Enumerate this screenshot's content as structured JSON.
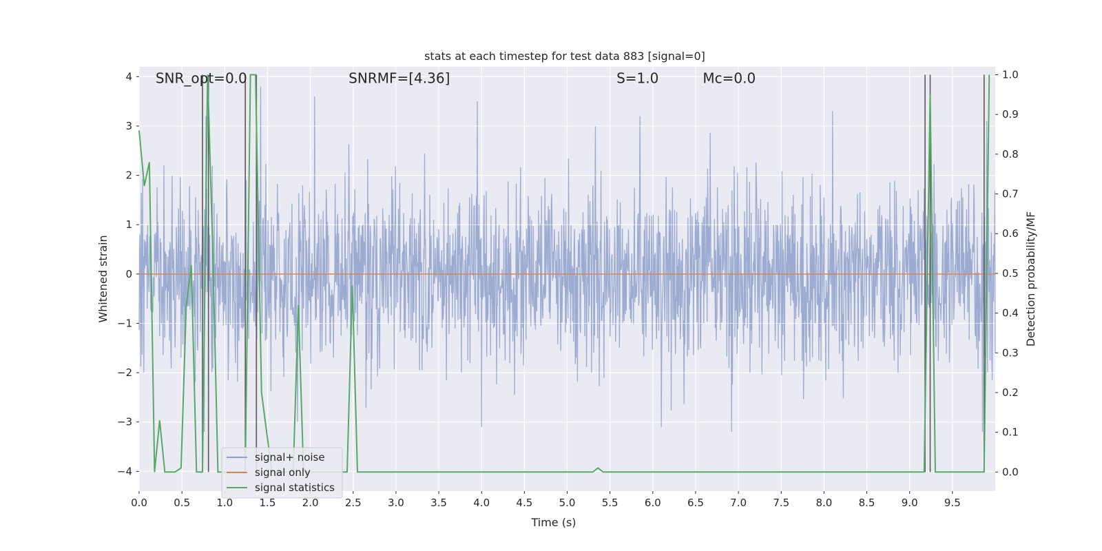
{
  "chart_data": {
    "type": "line",
    "title": "stats at each timestep for test data 883 [signal=0]",
    "xlabel": "Time (s)",
    "ylabel": "Whitened strain",
    "y2label": "Detection probability/MF",
    "xlim": [
      0.0,
      10.0
    ],
    "ylim": [
      -4.4,
      4.2
    ],
    "y2lim": [
      -0.048,
      1.02
    ],
    "x_ticks": [
      0.0,
      0.5,
      1.0,
      1.5,
      2.0,
      2.5,
      3.0,
      3.5,
      4.0,
      4.5,
      5.0,
      5.5,
      6.0,
      6.5,
      7.0,
      7.5,
      8.0,
      8.5,
      9.0,
      9.5
    ],
    "x_tick_labels": [
      "0.0",
      "0.5",
      "1.0",
      "1.5",
      "2.0",
      "2.5",
      "3.0",
      "3.5",
      "4.0",
      "4.5",
      "5.0",
      "5.5",
      "6.0",
      "6.5",
      "7.0",
      "7.5",
      "8.0",
      "8.5",
      "9.0",
      "9.5"
    ],
    "y_ticks": [
      4,
      3,
      2,
      1,
      0,
      -1,
      -2,
      -3,
      -4
    ],
    "y_tick_labels": [
      "4",
      "3",
      "2",
      "1",
      "0",
      "−1",
      "−2",
      "−3",
      "−4"
    ],
    "y2_ticks": [
      1.0,
      0.9,
      0.8,
      0.7,
      0.6,
      0.5,
      0.4,
      0.3,
      0.2,
      0.1,
      0.0
    ],
    "y2_tick_labels": [
      "1.0",
      "0.9",
      "0.8",
      "0.7",
      "0.6",
      "0.5",
      "0.4",
      "0.3",
      "0.2",
      "0.1",
      "0.0"
    ],
    "annotations": [
      {
        "text": "SNR_opt=0.0",
        "x": 0.2,
        "y": 4.0
      },
      {
        "text": "SNRMF=[4.36]",
        "x": 2.6,
        "y": 4.0
      },
      {
        "text": "S=1.0",
        "x": 5.6,
        "y": 4.0
      },
      {
        "text": "Mc=0.0",
        "x": 6.6,
        "y": 4.0
      }
    ],
    "legend": {
      "placement": "lower-left",
      "entries": [
        {
          "label": "signal+ noise",
          "color": "#8da0cb"
        },
        {
          "label": "signal only",
          "color": "#dd8452"
        },
        {
          "label": "signal statistics",
          "color": "#55a868"
        }
      ]
    },
    "series": [
      {
        "name": "signal+ noise",
        "axis": "left",
        "style": "dense-noise",
        "sampled_extremes": [
          {
            "x": 0.78,
            "y": 3.2
          },
          {
            "x": 0.76,
            "y": -3.2
          },
          {
            "x": 1.42,
            "y": 3.8
          },
          {
            "x": 1.85,
            "y": -3.0
          },
          {
            "x": 2.05,
            "y": 3.6
          },
          {
            "x": 3.95,
            "y": 3.5
          },
          {
            "x": 4.0,
            "y": -3.1
          },
          {
            "x": 5.33,
            "y": 3.0
          },
          {
            "x": 5.85,
            "y": 3.2
          },
          {
            "x": 6.1,
            "y": -3.1
          },
          {
            "x": 6.92,
            "y": -3.2
          },
          {
            "x": 8.1,
            "y": 3.3
          },
          {
            "x": 9.85,
            "y": -3.2
          },
          {
            "x": 9.9,
            "y": 3.1
          }
        ]
      },
      {
        "name": "signal only",
        "axis": "left",
        "x": [
          0.0,
          10.0
        ],
        "y": [
          0.0,
          0.0
        ]
      },
      {
        "name": "signal statistics",
        "axis": "right",
        "x": [
          0.0,
          0.06,
          0.12,
          0.18,
          0.24,
          0.3,
          0.42,
          0.49,
          0.55,
          0.61,
          0.67,
          0.74,
          0.8,
          0.86,
          0.92,
          1.24,
          1.3,
          1.36,
          1.43,
          1.55,
          1.8,
          1.86,
          1.92,
          2.43,
          2.49,
          2.55,
          5.3,
          5.36,
          5.42,
          9.17,
          9.24,
          9.3,
          9.87,
          9.93
        ],
        "y": [
          0.86,
          0.72,
          0.78,
          0.0,
          0.13,
          0.0,
          0.0,
          0.01,
          0.42,
          0.52,
          0.0,
          0.0,
          1.0,
          0.56,
          0.0,
          0.0,
          1.0,
          1.0,
          0.2,
          0.0,
          0.0,
          0.42,
          0.0,
          0.0,
          0.47,
          0.0,
          0.0,
          0.01,
          0.0,
          0.0,
          0.95,
          0.0,
          0.0,
          1.0
        ]
      }
    ],
    "vertical_markers": {
      "color": "#595959",
      "x": [
        0.74,
        0.81,
        1.24,
        1.37,
        9.18,
        9.24,
        9.87
      ]
    },
    "grid": true,
    "background": "#eaeaf2"
  }
}
